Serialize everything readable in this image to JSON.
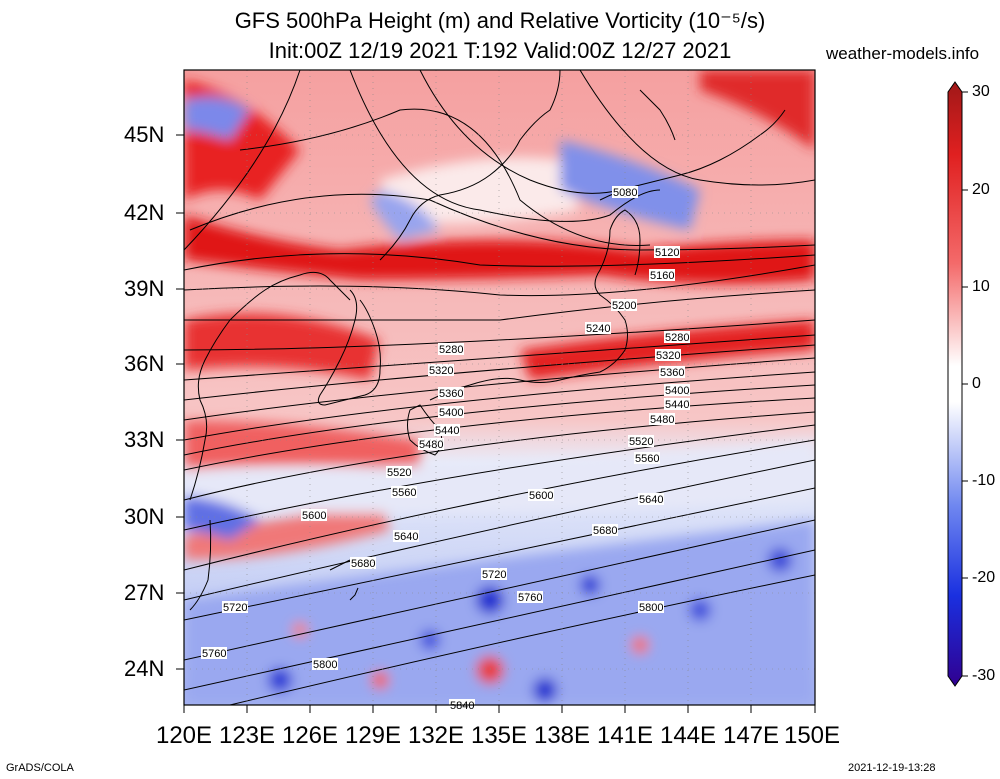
{
  "title": {
    "line1": "GFS 500hPa Height (m) and Relative Vorticity (10⁻⁵/s)",
    "line2": "Init:00Z 12/19 2021 T:192 Valid:00Z 12/27 2021"
  },
  "site": "weather-models.info",
  "footer": {
    "left": "GrADS/COLA",
    "right": "2021-12-19-13:28"
  },
  "axes": {
    "lat_labels": [
      "45N",
      "42N",
      "39N",
      "36N",
      "33N",
      "30N",
      "27N",
      "24N"
    ],
    "lon_labels": [
      "120E",
      "123E",
      "126E",
      "129E",
      "132E",
      "135E",
      "138E",
      "141E",
      "144E",
      "147E",
      "150E"
    ]
  },
  "colorbar": {
    "ticks": [
      "30",
      "20",
      "10",
      "0",
      "-10",
      "-20",
      "-30"
    ],
    "colors": {
      "top": "#b01a1a",
      "upper": "#f03030",
      "mid": "#ffffff",
      "lower": "#3050e0",
      "bottom": "#2a0080"
    }
  },
  "contours": [
    "5080",
    "5120",
    "5160",
    "5200",
    "5240",
    "5280",
    "5320",
    "5360",
    "5400",
    "5440",
    "5480",
    "5520",
    "5560",
    "5600",
    "5640",
    "5680",
    "5720",
    "5760",
    "5800",
    "5840"
  ],
  "contour_labels": {
    "c5080": "5080",
    "c5120": "5120",
    "c5160": "5160",
    "c5200": "5200",
    "c5240": "5240",
    "c5280a": "5280",
    "c5280b": "5280",
    "c5320a": "5320",
    "c5320b": "5320",
    "c5360a": "5360",
    "c5360b": "5360",
    "c5400a": "5400",
    "c5400b": "5400",
    "c5440a": "5440",
    "c5440b": "5440",
    "c5480a": "5480",
    "c5480b": "5480",
    "c5520a": "5520",
    "c5520b": "5520",
    "c5560a": "5560",
    "c5560b": "5560",
    "c5600a": "5600",
    "c5600b": "5600",
    "c5640a": "5640",
    "c5640b": "5640",
    "c5680a": "5680",
    "c5680b": "5680",
    "c5720a": "5720",
    "c5720b": "5720",
    "c5760a": "5760",
    "c5760b": "5760",
    "c5800a": "5800",
    "c5800b": "5800",
    "c5840": "5840"
  }
}
